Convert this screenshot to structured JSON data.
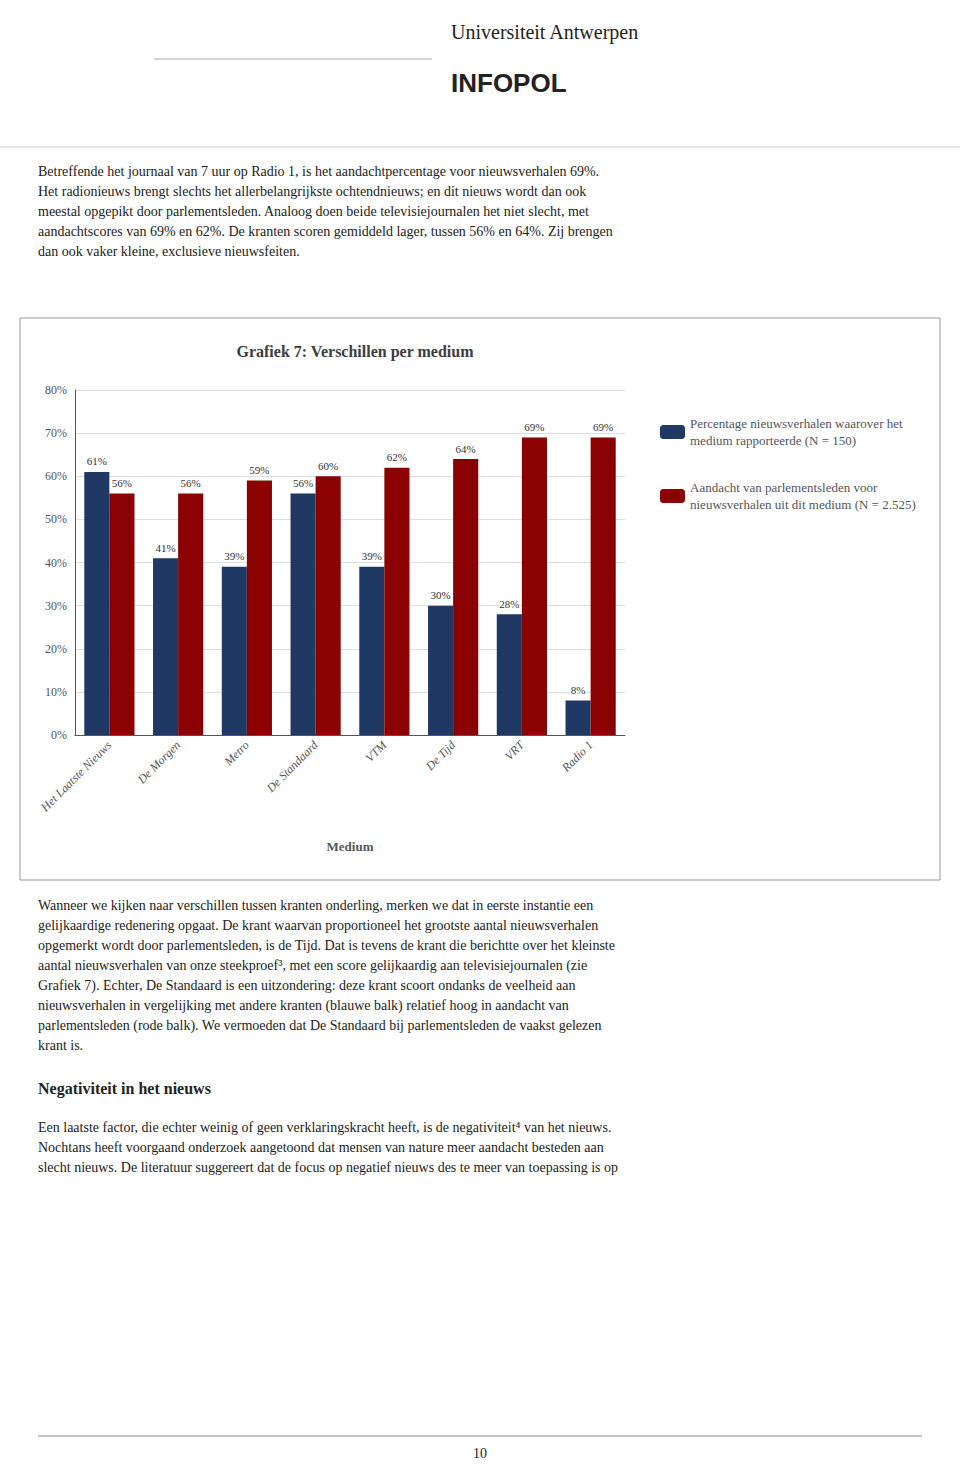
{
  "chart_data": {
    "type": "bar",
    "title": "Grafiek 7: Verschillen per medium",
    "xlabel": "Medium",
    "categories": [
      "Het Laatste Nieuws",
      "De Morgen",
      "Metro",
      "De Standaard",
      "VTM",
      "De Tijd",
      "VRT",
      "Radio 1"
    ],
    "series": [
      {
        "name": "Percentage nieuwsverhalen waarover het medium rapporteerde (N = 150)",
        "color": "#1F3864",
        "values": [
          61,
          41,
          39,
          56,
          39,
          30,
          28,
          8
        ],
        "value_labels": [
          "61%",
          "41%",
          "39%",
          "56%",
          "39%",
          "30%",
          "28%",
          "8%"
        ]
      },
      {
        "name": "Aandacht van parlementsleden voor nieuwsverhalen uit dit medium (N = 2.525)",
        "color": "#8B0000",
        "values": [
          56,
          56,
          59,
          60,
          62,
          64,
          69,
          69
        ],
        "value_labels": [
          "56%",
          "56%",
          "59%",
          "60%",
          "62%",
          "64%",
          "69%",
          "69%"
        ]
      }
    ],
    "ylim": [
      0,
      80
    ],
    "yticks": [
      {
        "value": 0,
        "label": "0%"
      },
      {
        "value": 10,
        "label": "10%"
      },
      {
        "value": 20,
        "label": "20%"
      },
      {
        "value": 30,
        "label": "30%"
      },
      {
        "value": 40,
        "label": "40%"
      },
      {
        "value": 50,
        "label": "50%"
      },
      {
        "value": 60,
        "label": "60%"
      },
      {
        "value": 70,
        "label": "70%"
      },
      {
        "value": 80,
        "label": "80%"
      }
    ],
    "grid": true,
    "legend": "right",
    "data_labels": true,
    "annotations": [
      [
        "Universiteit Antwerpen",
        "INFOPOL"
      ],
      [
        "Betreffende het journaal van 7 uur op Radio 1, is het aandachtpercentage voor nieuwsverhalen 69%.",
        "Het radionieuws brengt slechts het allerbelangrijkste ochtendnieuws; en dit nieuws wordt dan ook",
        "meestal opgepikt door parlementsleden. Analoog doen beide televisiejournalen het niet slecht, met",
        "aandachtscores van 69% en 62%. De kranten scoren gemiddeld lager, tussen 56% en 64%. Zij brengen",
        "dan ook vaker kleine, exclusieve nieuwsfeiten."
      ],
      [
        "Wanneer we kijken naar verschillen tussen kranten onderling, merken we dat in eerste instantie een",
        "gelijkaardige redenering opgaat. De krant waarvan proportioneel het grootste aantal nieuwsverhalen",
        "opgemerkt wordt door parlementsleden, is de Tijd. Dat is tevens de krant die berichtte over het kleinste",
        "aantal nieuwsverhalen van onze steekproef³, met een score gelijkaardig aan televisiejournalen (zie",
        "Grafiek 7). Echter, De Standaard is een uitzondering: deze krant scoort ondanks de veelheid aan",
        "nieuwsverhalen in vergelijking met andere kranten (blauwe balk) relatief hoog in aandacht van",
        "parlementsleden (rode balk). We vermoeden dat De Standaard bij parlementsleden de vaakst gelezen",
        "krant is."
      ],
      [
        "Negativiteit in het nieuws"
      ],
      [
        "Een laatste factor, die echter weinig of geen verklaringskracht heeft, is de negativiteit⁴ van het nieuws.",
        "Nochtans heeft voorgaand onderzoek aangetoond dat mensen van nature meer aandacht besteden aan",
        "slecht nieuws. De literatuur suggereert dat de focus op negatief nieuws des te meer van toepassing is op"
      ],
      [
        "10"
      ]
    ]
  }
}
